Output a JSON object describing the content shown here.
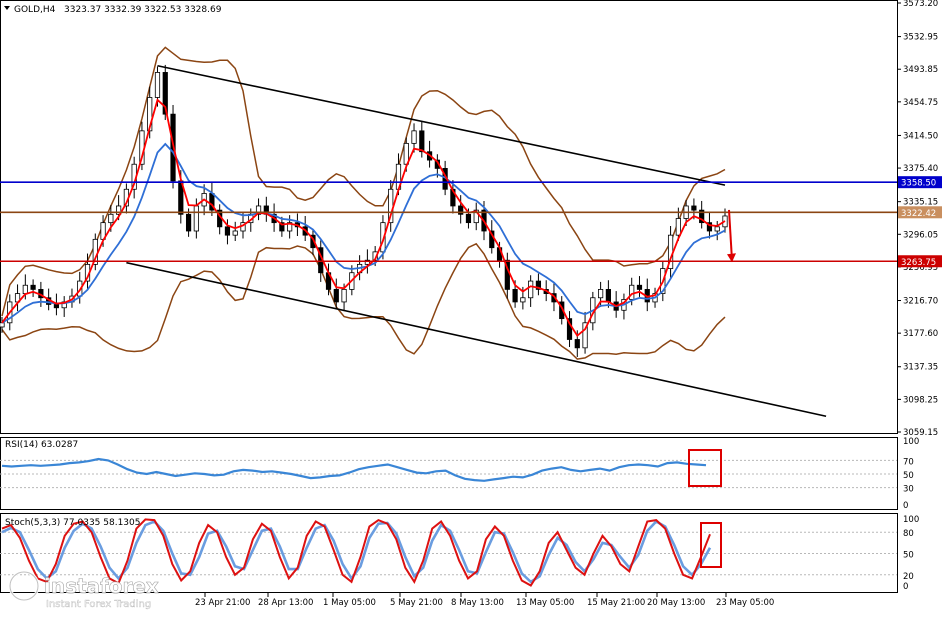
{
  "header": {
    "symbol": "GOLD,H4",
    "ohlc": "3323.37 3332.39 3322.53 3328.69"
  },
  "colors": {
    "candle": "#000000",
    "ma_fast": "#ff0000",
    "ma_slow": "#2f6fd6",
    "bands": "#8b4513",
    "channel": "#000000",
    "resistance_line": "#0000cc",
    "current_price_line": "#8b4513",
    "support_line": "#cc0000",
    "rsi": "#3a86d6",
    "stoch_main": "#dd1111",
    "stoch_signal": "#6a9de0",
    "highlight_box": "#dd0000",
    "arrow": "#dd0000"
  },
  "chart_data": [
    {
      "type": "line",
      "panel": "main",
      "title": "GOLD,H4",
      "ylim": [
        3059.15,
        3573.2
      ],
      "y_ticks": [
        "3573.20",
        "3532.95",
        "3493.85",
        "3454.75",
        "3414.50",
        "3375.40",
        "3335.15",
        "3296.05",
        "3256.95",
        "3216.70",
        "3177.60",
        "3137.35",
        "3098.25",
        "3059.15"
      ],
      "x_labels": [
        "23 Apr 21:00",
        "28 Apr 13:00",
        "1 May 05:00",
        "5 May 21:00",
        "8 May 13:00",
        "13 May 05:00",
        "15 May 21:00",
        "20 May 13:00",
        "23 May 05:00"
      ],
      "levels": [
        {
          "name": "resistance",
          "value": 3358.5,
          "label": "3358.50"
        },
        {
          "name": "current",
          "value": 3322.42,
          "label": "3322.42"
        },
        {
          "name": "support",
          "value": 3263.75,
          "label": "3263.75"
        }
      ],
      "channel": {
        "upper": [
          {
            "i": 20,
            "v": 3498
          },
          {
            "i": 93,
            "v": 3355
          }
        ],
        "lower": [
          {
            "i": 16,
            "v": 3262
          },
          {
            "i": 106,
            "v": 3078
          }
        ]
      },
      "prices": [
        3190,
        3215,
        3225,
        3235,
        3230,
        3220,
        3212,
        3208,
        3215,
        3222,
        3240,
        3260,
        3290,
        3310,
        3320,
        3330,
        3350,
        3380,
        3420,
        3460,
        3490,
        3440,
        3360,
        3320,
        3300,
        3330,
        3345,
        3325,
        3305,
        3295,
        3300,
        3310,
        3320,
        3330,
        3320,
        3310,
        3300,
        3310,
        3305,
        3295,
        3280,
        3250,
        3230,
        3215,
        3230,
        3250,
        3260,
        3265,
        3275,
        3310,
        3350,
        3380,
        3405,
        3420,
        3395,
        3385,
        3375,
        3350,
        3330,
        3320,
        3310,
        3325,
        3300,
        3280,
        3265,
        3230,
        3215,
        3220,
        3240,
        3230,
        3225,
        3215,
        3195,
        3170,
        3160,
        3190,
        3220,
        3230,
        3215,
        3205,
        3218,
        3235,
        3230,
        3215,
        3225,
        3255,
        3295,
        3315,
        3330,
        3325,
        3310,
        3300,
        3305,
        3318
      ]
    },
    {
      "type": "line",
      "panel": "rsi",
      "title": "RSI(14) 63.0287",
      "ylim": [
        0,
        100
      ],
      "y_ticks": [
        "100",
        "70",
        "50",
        "30",
        "0"
      ],
      "values": [
        62,
        61,
        62,
        63,
        62,
        63,
        64,
        66,
        67,
        69,
        72,
        70,
        64,
        57,
        52,
        50,
        53,
        50,
        47,
        49,
        51,
        50,
        48,
        49,
        54,
        56,
        55,
        53,
        54,
        52,
        50,
        47,
        44,
        45,
        47,
        48,
        52,
        57,
        60,
        62,
        64,
        60,
        56,
        52,
        51,
        54,
        55,
        48,
        43,
        41,
        40,
        42,
        44,
        46,
        45,
        49,
        55,
        58,
        60,
        56,
        54,
        56,
        58,
        55,
        60,
        63,
        64,
        63,
        61,
        66,
        67,
        65,
        64,
        63
      ]
    },
    {
      "type": "line",
      "panel": "stochastic",
      "title": "Stoch(5,3,3) 77.0335 58.1305",
      "ylim": [
        0,
        100
      ],
      "y_ticks": [
        "100",
        "80",
        "50",
        "20",
        "0"
      ],
      "main": [
        85,
        90,
        72,
        40,
        15,
        10,
        35,
        75,
        92,
        95,
        80,
        45,
        15,
        8,
        40,
        85,
        98,
        97,
        75,
        35,
        12,
        25,
        65,
        90,
        80,
        45,
        20,
        30,
        70,
        92,
        82,
        45,
        15,
        30,
        75,
        95,
        88,
        55,
        20,
        10,
        45,
        88,
        97,
        92,
        70,
        30,
        10,
        40,
        85,
        95,
        75,
        40,
        15,
        25,
        70,
        88,
        75,
        40,
        12,
        5,
        25,
        65,
        80,
        55,
        30,
        20,
        50,
        75,
        60,
        35,
        25,
        60,
        95,
        97,
        85,
        50,
        20,
        15,
        45,
        77
      ],
      "signal": [
        80,
        86,
        80,
        55,
        28,
        15,
        25,
        58,
        82,
        92,
        85,
        60,
        30,
        15,
        30,
        65,
        90,
        95,
        82,
        50,
        22,
        20,
        45,
        78,
        82,
        60,
        32,
        28,
        55,
        82,
        85,
        60,
        28,
        28,
        58,
        85,
        90,
        68,
        35,
        15,
        32,
        72,
        92,
        93,
        78,
        45,
        18,
        30,
        68,
        90,
        82,
        55,
        25,
        22,
        52,
        80,
        78,
        52,
        22,
        10,
        18,
        48,
        72,
        62,
        38,
        25,
        42,
        65,
        62,
        45,
        30,
        48,
        82,
        95,
        88,
        62,
        32,
        20,
        35,
        58
      ]
    }
  ],
  "watermark": {
    "brand": "instaforex",
    "tagline": "Instant Forex Trading"
  }
}
